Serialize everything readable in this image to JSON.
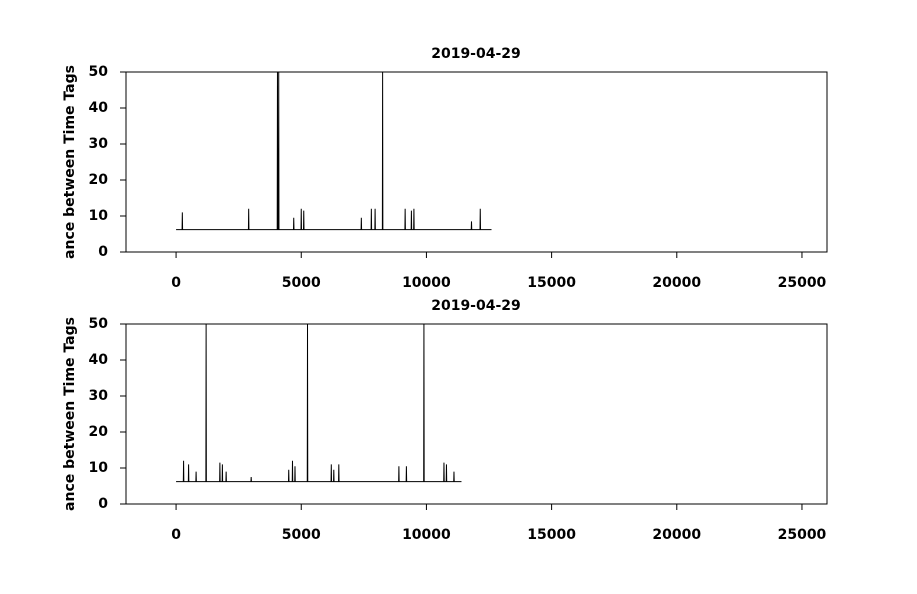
{
  "chart_data": [
    {
      "type": "line",
      "title": "2019-04-29",
      "y_label": "ance between Time Tags",
      "color": "#000000",
      "x": [
        0,
        240,
        250,
        260,
        2890,
        2900,
        2910,
        4040,
        4050,
        4060,
        4090,
        4100,
        4110,
        4690,
        4700,
        4710,
        4990,
        5000,
        5010,
        5090,
        5100,
        5110,
        7390,
        7400,
        7410,
        7790,
        7800,
        7810,
        7940,
        7950,
        7960,
        8240,
        8250,
        8260,
        9140,
        9150,
        9160,
        9390,
        9400,
        9410,
        9490,
        9500,
        9510,
        11790,
        11800,
        11810,
        12140,
        12150,
        12160,
        12600
      ],
      "values": [
        6.2,
        6.2,
        11,
        6.2,
        6.2,
        12,
        6.2,
        6.2,
        50,
        6.2,
        6.2,
        50,
        6.2,
        6.2,
        9.5,
        6.2,
        6.2,
        12,
        6.2,
        6.2,
        11.5,
        6.2,
        6.2,
        9.5,
        6.2,
        6.2,
        12,
        6.2,
        6.2,
        12,
        6.2,
        6.2,
        50,
        6.2,
        6.2,
        12,
        6.2,
        6.2,
        11.5,
        6.2,
        6.2,
        12,
        6.2,
        6.2,
        8.5,
        6.2,
        6.2,
        12,
        6.2,
        6.2
      ],
      "xlim": [
        -2000,
        26000
      ],
      "xticks": [
        0,
        5000,
        10000,
        15000,
        20000,
        25000
      ],
      "ylim": [
        0,
        50
      ],
      "yticks": [
        0,
        10,
        20,
        30,
        40,
        50
      ]
    },
    {
      "type": "line",
      "title": "2019-04-29",
      "y_label": "ance between Time Tags",
      "color": "#000000",
      "x": [
        0,
        290,
        300,
        310,
        490,
        500,
        510,
        790,
        800,
        810,
        1190,
        1200,
        1210,
        1740,
        1750,
        1760,
        1840,
        1850,
        1860,
        1990,
        2000,
        2010,
        2990,
        3000,
        3010,
        4490,
        4500,
        4510,
        4640,
        4650,
        4660,
        4740,
        4750,
        4760,
        5240,
        5250,
        5260,
        6190,
        6200,
        6210,
        6290,
        6300,
        6310,
        6490,
        6500,
        6510,
        8890,
        8900,
        8910,
        9190,
        9200,
        9210,
        9890,
        9900,
        9910,
        10690,
        10700,
        10710,
        10790,
        10800,
        10810,
        11090,
        11100,
        11110,
        11400
      ],
      "values": [
        6.2,
        6.2,
        12,
        6.2,
        6.2,
        11,
        6.2,
        6.2,
        9,
        6.2,
        6.2,
        50,
        6.2,
        6.2,
        11.5,
        6.2,
        6.2,
        11,
        6.2,
        6.2,
        9,
        6.2,
        6.2,
        7.5,
        6.2,
        6.2,
        9.5,
        6.2,
        6.2,
        12,
        6.2,
        6.2,
        10.5,
        6.2,
        6.2,
        50,
        6.2,
        6.2,
        11,
        6.2,
        6.2,
        9.5,
        6.2,
        6.2,
        11,
        6.2,
        6.2,
        10.5,
        6.2,
        6.2,
        10.5,
        6.2,
        6.2,
        50,
        6.2,
        6.2,
        11.5,
        6.2,
        6.2,
        11,
        6.2,
        6.2,
        9,
        6.2,
        6.2
      ],
      "xlim": [
        -2000,
        26000
      ],
      "xticks": [
        0,
        5000,
        10000,
        15000,
        20000,
        25000
      ],
      "ylim": [
        0,
        50
      ],
      "yticks": [
        0,
        10,
        20,
        30,
        40,
        50
      ]
    }
  ]
}
